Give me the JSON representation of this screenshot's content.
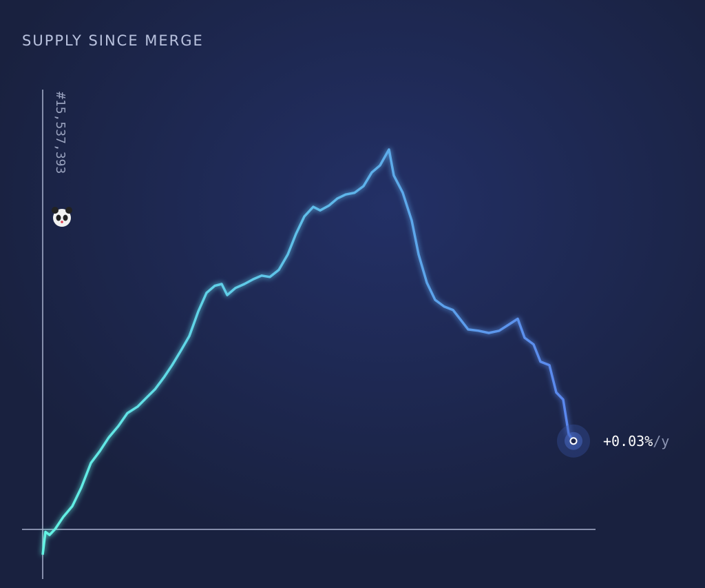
{
  "chart_data": {
    "type": "line",
    "title": "SUPPLY SINCE MERGE",
    "block_label": "#15,537,393",
    "end_label": {
      "value_text": "+0.03%",
      "unit_text": "/y"
    },
    "x": [
      0,
      4,
      10,
      18,
      30,
      43,
      56,
      70,
      83,
      96,
      110,
      123,
      138,
      150,
      163,
      176,
      188,
      200,
      213,
      226,
      238,
      250,
      260,
      268,
      280,
      293,
      306,
      318,
      330,
      343,
      356,
      368,
      380,
      393,
      403,
      416,
      428,
      440,
      453,
      466,
      478,
      490,
      503,
      510,
      523,
      536,
      546,
      558,
      570,
      583,
      596,
      608,
      618,
      633,
      648,
      663,
      676,
      690,
      700,
      713,
      723,
      736,
      746,
      756,
      764,
      771
    ],
    "xlim": [
      0,
      771
    ],
    "values": [
      -5.8,
      -0.6,
      -1.3,
      0,
      2.8,
      5.2,
      9.4,
      15,
      17.7,
      20.8,
      23.4,
      26.3,
      27.8,
      29.7,
      31.7,
      34.4,
      37.2,
      40.3,
      43.8,
      49.4,
      53.6,
      55.2,
      55.6,
      53.1,
      54.7,
      55.6,
      56.7,
      57.5,
      57.2,
      58.8,
      62.3,
      67,
      70.9,
      73.1,
      72.3,
      73.4,
      75,
      75.9,
      76.3,
      77.8,
      80.9,
      82.5,
      86.1,
      80.2,
      76.3,
      70,
      62.3,
      55.9,
      52,
      50.5,
      49.7,
      47.3,
      45.3,
      45,
      44.5,
      45,
      46.3,
      47.7,
      43.4,
      41.9,
      38,
      37.2,
      31,
      29.4,
      21.6,
      20
    ],
    "ylim": [
      -11,
      100
    ],
    "gradient": [
      "#63f4e4",
      "#5a86ee"
    ],
    "background": "#1b2449"
  }
}
